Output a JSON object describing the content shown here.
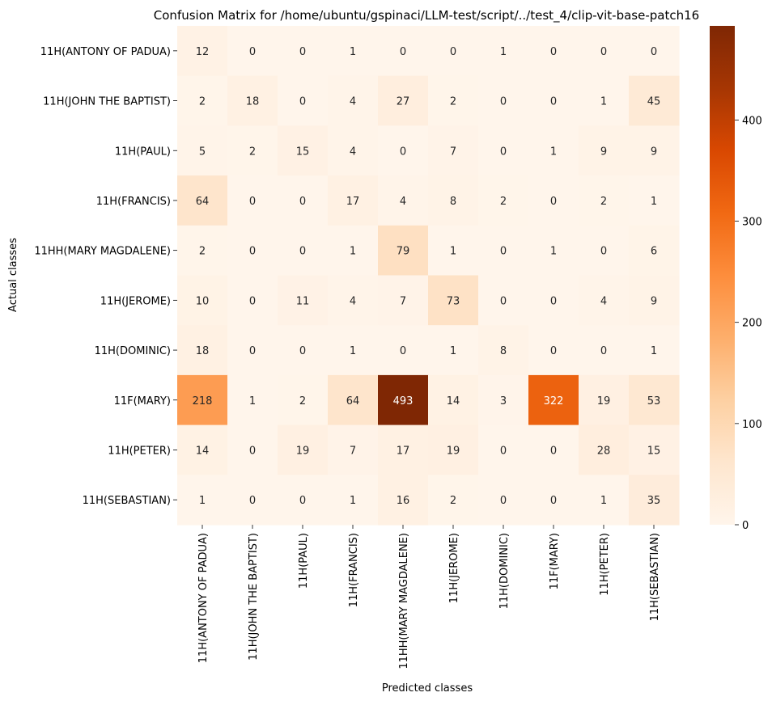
{
  "chart_data": {
    "type": "heatmap",
    "title": "Confusion Matrix for /home/ubuntu/gspinaci/LLM-test/script/../test_4/clip-vit-base-patch16",
    "xlabel": "Predicted classes",
    "ylabel": "Actual classes",
    "x_categories": [
      "11H(ANTONY OF PADUA)",
      "11H(JOHN THE BAPTIST)",
      "11H(PAUL)",
      "11H(FRANCIS)",
      "11HH(MARY MAGDALENE)",
      "11H(JEROME)",
      "11H(DOMINIC)",
      "11F(MARY)",
      "11H(PETER)",
      "11H(SEBASTIAN)"
    ],
    "y_categories": [
      "11H(ANTONY OF PADUA)",
      "11H(JOHN THE BAPTIST)",
      "11H(PAUL)",
      "11H(FRANCIS)",
      "11HH(MARY MAGDALENE)",
      "11H(JEROME)",
      "11H(DOMINIC)",
      "11F(MARY)",
      "11H(PETER)",
      "11H(SEBASTIAN)"
    ],
    "values": [
      [
        12,
        0,
        0,
        1,
        0,
        0,
        1,
        0,
        0,
        0
      ],
      [
        2,
        18,
        0,
        4,
        27,
        2,
        0,
        0,
        1,
        45
      ],
      [
        5,
        2,
        15,
        4,
        0,
        7,
        0,
        1,
        9,
        9
      ],
      [
        64,
        0,
        0,
        17,
        4,
        8,
        2,
        0,
        2,
        1
      ],
      [
        2,
        0,
        0,
        1,
        79,
        1,
        0,
        1,
        0,
        6
      ],
      [
        10,
        0,
        11,
        4,
        7,
        73,
        0,
        0,
        4,
        9
      ],
      [
        18,
        0,
        0,
        1,
        0,
        1,
        8,
        0,
        0,
        1
      ],
      [
        218,
        1,
        2,
        64,
        493,
        14,
        3,
        322,
        19,
        53
      ],
      [
        14,
        0,
        19,
        7,
        17,
        19,
        0,
        0,
        28,
        15
      ],
      [
        1,
        0,
        0,
        1,
        16,
        2,
        0,
        0,
        1,
        35
      ]
    ],
    "colormap": "Oranges",
    "vmin": 0,
    "vmax": 493,
    "colorbar_ticks": [
      0,
      100,
      200,
      300,
      400
    ],
    "colorbar_tick_labels": [
      "0",
      "100",
      "200",
      "300",
      "400"
    ],
    "grid": false
  }
}
